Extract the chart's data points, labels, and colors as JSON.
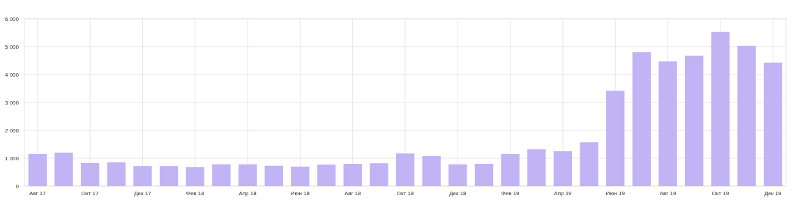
{
  "chart_data": {
    "type": "bar",
    "categories": [
      "Авг 17",
      null,
      "Окт 17",
      null,
      "Дек 17",
      null,
      "Фев 18",
      null,
      "Апр 18",
      null,
      "Июн 18",
      null,
      "Авг 18",
      null,
      "Окт 18",
      null,
      "Дек 18",
      null,
      "Фев 19",
      null,
      "Апр 19",
      null,
      "Июн 19",
      null,
      "Авг 19",
      null,
      "Окт 19",
      null,
      "Дек 19"
    ],
    "values": [
      1150,
      1200,
      830,
      850,
      720,
      720,
      680,
      780,
      780,
      730,
      700,
      770,
      800,
      820,
      1170,
      1080,
      780,
      800,
      1150,
      1320,
      1250,
      1570,
      3420,
      4800,
      4470,
      4680,
      5530,
      5030,
      4430
    ],
    "color": "#c2b3f5",
    "ylim": [
      0,
      6000
    ],
    "yticks": [
      {
        "value": 0,
        "label": "0"
      },
      {
        "value": 1000,
        "label": "1 000"
      },
      {
        "value": 2000,
        "label": "2 000"
      },
      {
        "value": 3000,
        "label": "3 000"
      },
      {
        "value": 4000,
        "label": "4 000"
      },
      {
        "value": 5000,
        "label": "5 000"
      },
      {
        "value": 6000,
        "label": "6 000"
      }
    ],
    "grid": true
  }
}
